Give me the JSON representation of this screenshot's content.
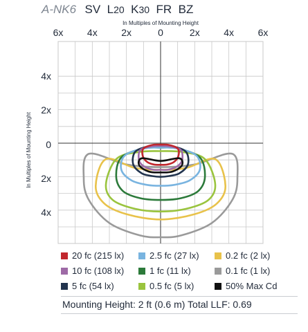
{
  "header": {
    "model": "A-NK6",
    "parts": [
      "SV",
      "L",
      "20",
      "K",
      "30",
      "FR",
      "BZ"
    ]
  },
  "chart_data": {
    "type": "isofootcandle",
    "xlabel": "In Multiples of Mounting Height",
    "ylabel": "In Multiples of Mounting Height",
    "x_ticks": [
      "6x",
      "4x",
      "2x",
      "0",
      "2x",
      "4x",
      "6x"
    ],
    "y_ticks": [
      "4x",
      "2x",
      "0",
      "2x",
      "4x"
    ],
    "xlim": [
      -6,
      6
    ],
    "ylim": [
      -5.5,
      6
    ],
    "grid": true,
    "center_lines_color": "#333333",
    "grid_color": "#c8c8c8",
    "series": [
      {
        "name": "0.1 fc (1 lx)",
        "color": "#9a9a9a",
        "points": [
          [
            -4.2,
            0.6
          ],
          [
            -2.0,
            1.2
          ],
          [
            0,
            1.35
          ],
          [
            2.0,
            1.2
          ],
          [
            4.2,
            0.6
          ],
          [
            4.5,
            2.0
          ],
          [
            4.2,
            3.2
          ],
          [
            3.0,
            4.5
          ],
          [
            1.2,
            5.2
          ],
          [
            0,
            5.3
          ],
          [
            -1.2,
            5.2
          ],
          [
            -3.0,
            4.5
          ],
          [
            -4.2,
            3.2
          ],
          [
            -4.5,
            2.0
          ]
        ]
      },
      {
        "name": "0.2 fc (2 lx)",
        "color": "#e8c24a",
        "points": [
          [
            -3.2,
            0.9
          ],
          [
            -1.5,
            1.4
          ],
          [
            0,
            1.5
          ],
          [
            1.5,
            1.4
          ],
          [
            3.2,
            0.9
          ],
          [
            3.8,
            2.4
          ],
          [
            3.3,
            3.4
          ],
          [
            2.0,
            4.0
          ],
          [
            0,
            4.3
          ],
          [
            -2.0,
            4.0
          ],
          [
            -3.3,
            3.4
          ],
          [
            -3.8,
            2.4
          ]
        ]
      },
      {
        "name": "0.5 fc (5 lx)",
        "color": "#9ac43e",
        "points": [
          [
            -2.6,
            0.9
          ],
          [
            -1.3,
            0.5
          ],
          [
            0,
            0.45
          ],
          [
            1.3,
            0.5
          ],
          [
            2.6,
            0.9
          ],
          [
            3.2,
            2.3
          ],
          [
            2.8,
            3.2
          ],
          [
            1.5,
            3.7
          ],
          [
            0,
            3.85
          ],
          [
            -1.5,
            3.7
          ],
          [
            -2.8,
            3.2
          ],
          [
            -3.2,
            2.3
          ]
        ]
      },
      {
        "name": "1 fc (11 lx)",
        "color": "#2c7a3a",
        "points": [
          [
            -2.3,
            0.8
          ],
          [
            -1.0,
            0.3
          ],
          [
            0,
            0.25
          ],
          [
            1.0,
            0.3
          ],
          [
            2.3,
            0.8
          ],
          [
            2.6,
            1.9
          ],
          [
            2.2,
            2.7
          ],
          [
            1.2,
            3.1
          ],
          [
            0,
            3.2
          ],
          [
            -1.2,
            3.1
          ],
          [
            -2.2,
            2.7
          ],
          [
            -2.6,
            1.9
          ]
        ]
      },
      {
        "name": "2.5 fc (27 lx)",
        "color": "#79b4e0",
        "points": [
          [
            -2.1,
            0.7
          ],
          [
            -1.0,
            0.3
          ],
          [
            0,
            0.25
          ],
          [
            1.0,
            0.3
          ],
          [
            2.1,
            0.7
          ],
          [
            2.3,
            1.5
          ],
          [
            1.7,
            2.1
          ],
          [
            0.8,
            2.35
          ],
          [
            0,
            2.4
          ],
          [
            -0.8,
            2.35
          ],
          [
            -1.7,
            2.1
          ],
          [
            -2.3,
            1.5
          ]
        ]
      },
      {
        "name": "5 fc (54 lx)",
        "color": "#22344e",
        "points": [
          [
            -1.5,
            0.5
          ],
          [
            -0.8,
            0.2
          ],
          [
            0,
            0.15
          ],
          [
            0.8,
            0.2
          ],
          [
            1.5,
            0.5
          ],
          [
            1.6,
            1.2
          ],
          [
            1.1,
            1.7
          ],
          [
            0.5,
            1.85
          ],
          [
            0,
            1.9
          ],
          [
            -0.5,
            1.85
          ],
          [
            -1.1,
            1.7
          ],
          [
            -1.6,
            1.2
          ]
        ]
      },
      {
        "name": "10 fc (108 lx)",
        "color": "#9e6aa6",
        "points": [
          [
            -1.2,
            0.4
          ],
          [
            -0.6,
            0.2
          ],
          [
            0,
            0.15
          ],
          [
            0.6,
            0.2
          ],
          [
            1.2,
            0.4
          ],
          [
            1.25,
            1.0
          ],
          [
            0.9,
            1.35
          ],
          [
            0.4,
            1.5
          ],
          [
            0,
            1.5
          ],
          [
            -0.4,
            1.5
          ],
          [
            -0.9,
            1.35
          ],
          [
            -1.25,
            1.0
          ]
        ]
      },
      {
        "name": "20 fc (215 lx)",
        "color": "#c1272d",
        "points": [
          [
            -1.0,
            0.3
          ],
          [
            -0.5,
            0.1
          ],
          [
            0,
            0.08
          ],
          [
            0.5,
            0.1
          ],
          [
            1.0,
            0.3
          ],
          [
            1.05,
            0.7
          ],
          [
            0.8,
            1.05
          ],
          [
            0.4,
            1.2
          ],
          [
            0,
            1.22
          ],
          [
            -0.4,
            1.2
          ],
          [
            -0.8,
            1.05
          ],
          [
            -1.05,
            0.7
          ]
        ]
      },
      {
        "name": "50% Max Cd",
        "color": "#111111",
        "points": [
          [
            -1.1,
            0.85
          ],
          [
            0,
            1.0
          ],
          [
            1.1,
            0.85
          ],
          [
            1.25,
            1.25
          ],
          [
            0.7,
            1.6
          ],
          [
            0,
            1.65
          ],
          [
            -0.7,
            1.6
          ],
          [
            -1.25,
            1.25
          ]
        ]
      }
    ],
    "legend_order": [
      "20 fc (215 lx)",
      "2.5 fc (27 lx)",
      "0.2 fc (2 lx)",
      "10 fc (108 lx)",
      "1 fc (11 lx)",
      "0.1 fc (1 lx)",
      "5 fc (54 lx)",
      "0.5 fc (5 lx)",
      "50% Max Cd"
    ],
    "legend_placement": "bottom"
  },
  "footer": {
    "text": "Mounting Height: 2 ft (0.6 m) Total LLF: 0.69"
  }
}
